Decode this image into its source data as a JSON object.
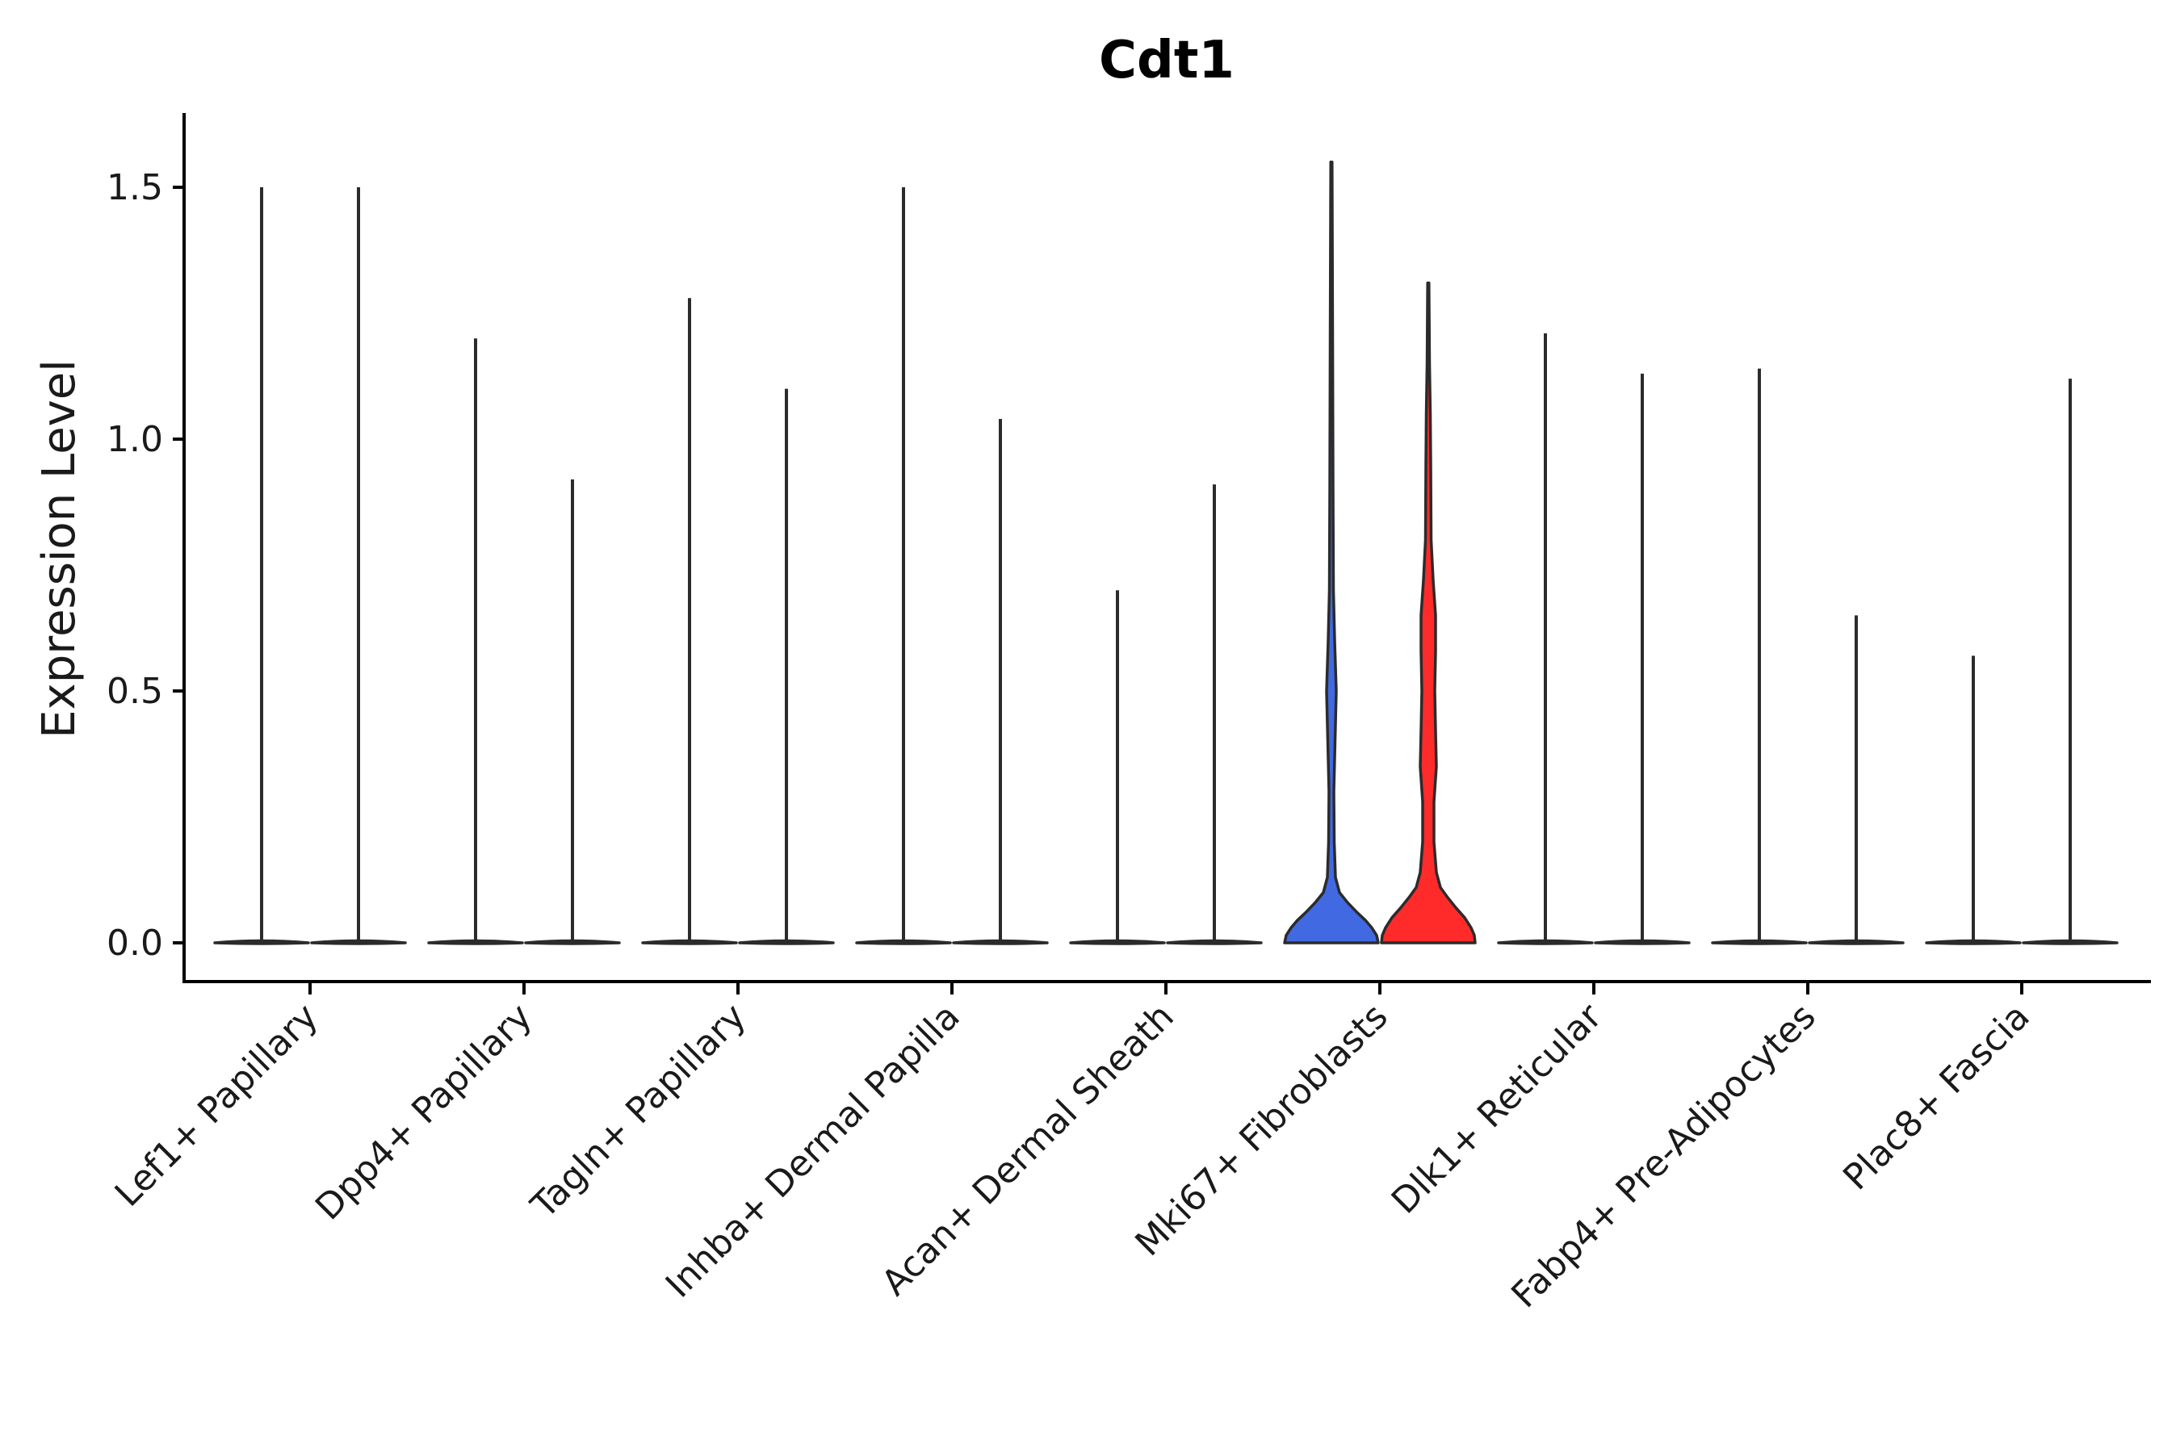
{
  "chart_data": {
    "type": "violin",
    "title": "Cdt1",
    "xlabel": "",
    "ylabel": "Expression Level",
    "ylim": [
      -0.08,
      1.65
    ],
    "yticks": [
      0.0,
      0.5,
      1.0,
      1.5
    ],
    "ytick_labels": [
      "0.0",
      "0.5",
      "1.0",
      "1.5"
    ],
    "grid": false,
    "legend": "none",
    "categories": [
      "Lef1+ Papillary",
      "Dpp4+ Papillary",
      "Tagln+ Papillary",
      "Inhba+ Dermal Papilla",
      "Acan+ Dermal Sheath",
      "Mki67+ Fibroblasts",
      "Dlk1+ Reticular",
      "Fabp4+ Pre-Adipocytes",
      "Plac8+ Fascia"
    ],
    "series": [
      {
        "name": "group 1",
        "color": "#ffffff",
        "max_values": [
          1.5,
          1.2,
          1.28,
          1.5,
          0.7,
          1.55,
          1.21,
          1.14,
          0.57
        ],
        "fill_colors": [
          "#ffffff",
          "#ffffff",
          "#ffffff",
          "#ffffff",
          "#ffffff",
          "#4169e1",
          "#ffffff",
          "#ffffff",
          "#ffffff"
        ],
        "density_mode": [
          "flat",
          "flat",
          "flat",
          "flat",
          "flat",
          "dense",
          "flat",
          "flat",
          "flat"
        ]
      },
      {
        "name": "group 2",
        "color": "#ffffff",
        "max_values": [
          1.5,
          0.92,
          1.1,
          1.04,
          0.91,
          1.31,
          1.13,
          0.65,
          1.12
        ],
        "fill_colors": [
          "#ffffff",
          "#ffffff",
          "#ffffff",
          "#ffffff",
          "#ffffff",
          "#ff2a2a",
          "#ffffff",
          "#ffffff",
          "#ffffff"
        ],
        "density_mode": [
          "flat",
          "flat",
          "flat",
          "flat",
          "flat",
          "dense",
          "flat",
          "flat",
          "flat"
        ]
      }
    ],
    "highlight": {
      "category": "Mki67+ Fibroblasts",
      "colors": [
        "#4169e1",
        "#ff2a2a"
      ]
    },
    "median_values": [
      0.0,
      0.0,
      0.0,
      0.0,
      0.0,
      0.0,
      0.0,
      0.0,
      0.0
    ]
  }
}
